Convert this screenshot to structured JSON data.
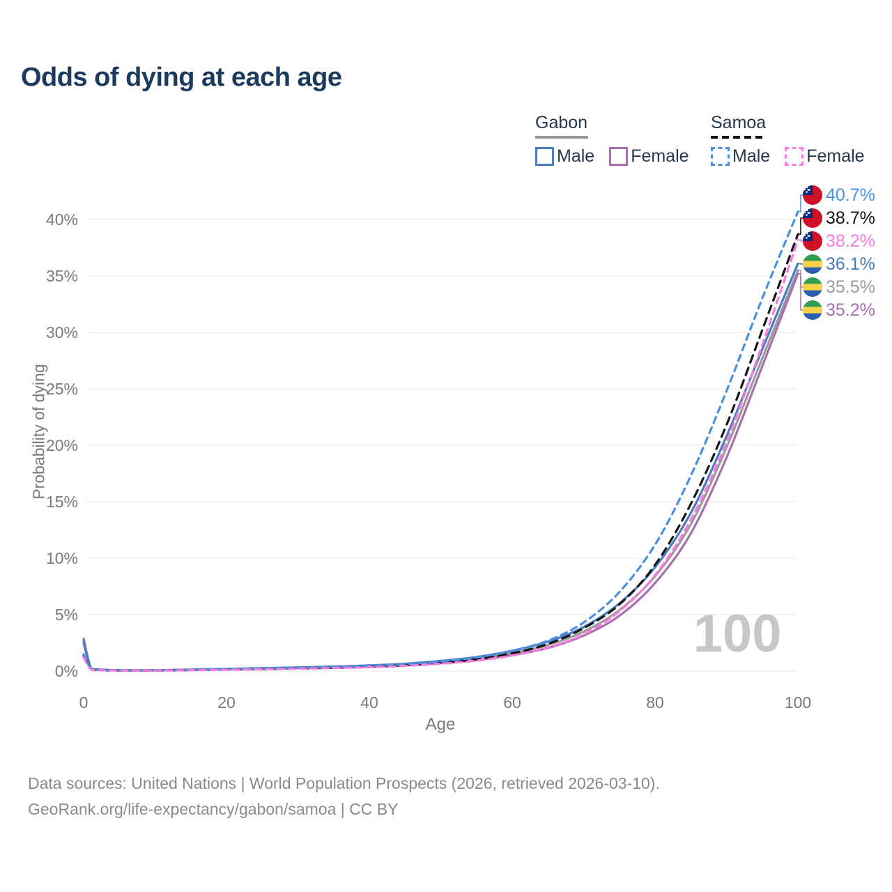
{
  "header": {
    "title": "Odds of dying at each age"
  },
  "legend": {
    "groups": [
      {
        "label": "Gabon",
        "line_color": "#9b9b9b",
        "dashed": false,
        "items": [
          {
            "label": "Male",
            "color": "#4a7cc2",
            "dashed": false
          },
          {
            "label": "Female",
            "color": "#a86fae",
            "dashed": false
          }
        ]
      },
      {
        "label": "Samoa",
        "line_color": "#151515",
        "dashed": true,
        "items": [
          {
            "label": "Male",
            "color": "#4a8fe2",
            "dashed": true
          },
          {
            "label": "Female",
            "color": "#fa7ae1",
            "dashed": true
          }
        ]
      }
    ]
  },
  "chart_data": {
    "type": "line",
    "title": "Odds of dying at each age",
    "xlabel": "Age",
    "ylabel": "Probability of dying",
    "xlim": [
      0,
      100
    ],
    "ylim": [
      0,
      43
    ],
    "x_ticks": [
      0,
      20,
      40,
      60,
      80,
      100
    ],
    "y_tick_labels": [
      "0%",
      "5%",
      "10%",
      "15%",
      "20%",
      "25%",
      "30%",
      "35%",
      "40%"
    ],
    "grid": "horizontal",
    "watermark": "100",
    "x": [
      0,
      1,
      2,
      5,
      10,
      15,
      20,
      25,
      30,
      35,
      40,
      45,
      50,
      55,
      60,
      65,
      70,
      75,
      80,
      85,
      90,
      95,
      100
    ],
    "series": [
      {
        "name": "Samoa Male",
        "country": "samoa",
        "sex": "male",
        "color": "#4a8fe2",
        "dashed": true,
        "end_label": "40.7%",
        "values": [
          1.5,
          0.2,
          0.1,
          0.06,
          0.06,
          0.1,
          0.15,
          0.21,
          0.27,
          0.34,
          0.44,
          0.6,
          0.85,
          1.22,
          1.8,
          2.7,
          4.3,
          7.0,
          11.2,
          17.3,
          24.8,
          33.0,
          40.7
        ]
      },
      {
        "name": "Samoa All",
        "country": "samoa",
        "sex": "all",
        "color": "#151515",
        "dashed": true,
        "end_label": "38.7%",
        "values": [
          1.35,
          0.18,
          0.09,
          0.05,
          0.05,
          0.09,
          0.13,
          0.18,
          0.23,
          0.29,
          0.38,
          0.52,
          0.73,
          1.05,
          1.58,
          2.4,
          3.8,
          5.9,
          9.4,
          14.8,
          21.8,
          30.2,
          38.7
        ]
      },
      {
        "name": "Samoa Female",
        "country": "samoa",
        "sex": "female",
        "color": "#fa7ae1",
        "dashed": true,
        "end_label": "38.2%",
        "values": [
          1.2,
          0.16,
          0.08,
          0.05,
          0.05,
          0.08,
          0.12,
          0.16,
          0.21,
          0.27,
          0.34,
          0.46,
          0.65,
          0.93,
          1.38,
          2.08,
          3.25,
          5.3,
          8.5,
          13.4,
          20.3,
          28.9,
          38.2
        ]
      },
      {
        "name": "Gabon Male",
        "country": "gabon",
        "sex": "male",
        "color": "#4a7cc2",
        "dashed": false,
        "end_label": "36.1%",
        "values": [
          2.85,
          0.3,
          0.15,
          0.08,
          0.08,
          0.13,
          0.2,
          0.26,
          0.33,
          0.4,
          0.5,
          0.65,
          0.9,
          1.25,
          1.8,
          2.6,
          3.9,
          6.0,
          9.2,
          14.0,
          20.8,
          28.5,
          36.1
        ]
      },
      {
        "name": "Gabon All",
        "country": "gabon",
        "sex": "all",
        "color": "#9b9b9b",
        "dashed": false,
        "end_label": "35.5%",
        "values": [
          2.65,
          0.28,
          0.14,
          0.07,
          0.07,
          0.12,
          0.18,
          0.23,
          0.29,
          0.36,
          0.45,
          0.58,
          0.8,
          1.1,
          1.6,
          2.3,
          3.5,
          5.4,
          8.4,
          13.0,
          19.8,
          27.7,
          35.5
        ]
      },
      {
        "name": "Gabon Female",
        "country": "gabon",
        "sex": "female",
        "color": "#a86fae",
        "dashed": false,
        "end_label": "35.2%",
        "values": [
          2.45,
          0.26,
          0.13,
          0.07,
          0.07,
          0.11,
          0.16,
          0.21,
          0.26,
          0.32,
          0.4,
          0.52,
          0.7,
          0.97,
          1.42,
          2.05,
          3.15,
          4.9,
          7.8,
          12.2,
          18.9,
          27.0,
          35.2
        ]
      }
    ],
    "flag_colors": {
      "samoa": {
        "red": "#CE1126",
        "blue": "#002B7F",
        "star": "#ffffff"
      },
      "gabon": {
        "green": "#2f9e52",
        "yellow": "#f8d146",
        "blue": "#2a5fb0"
      }
    }
  },
  "footer": {
    "line1": "Data sources: United Nations | World Population Prospects (2026, retrieved 2026-03-10).",
    "line2": "GeoRank.org/life-expectancy/gabon/samoa | CC BY"
  }
}
